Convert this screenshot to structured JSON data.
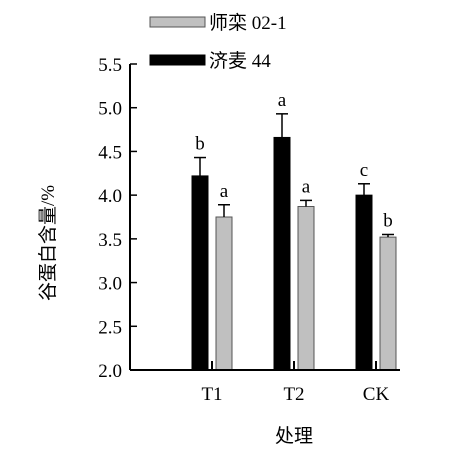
{
  "chart_data": {
    "type": "bar",
    "categories": [
      "T1",
      "T2",
      "CK"
    ],
    "series": [
      {
        "name": "济麦 44",
        "color": "#000000",
        "values": [
          4.22,
          4.66,
          4.0
        ],
        "errors": [
          0.21,
          0.27,
          0.13
        ],
        "letters": [
          "b",
          "a",
          "c"
        ]
      },
      {
        "name": "师栾 02-1",
        "color": "#c0c0c0",
        "values": [
          3.75,
          3.87,
          3.52
        ],
        "errors": [
          0.14,
          0.07,
          0.03
        ],
        "letters": [
          "a",
          "a",
          "b"
        ]
      }
    ],
    "legend_order": [
      1,
      0
    ],
    "legend_position": "top-left",
    "xlabel": "处理",
    "ylabel": "谷蛋白含量/%",
    "ylim": [
      2.0,
      5.5
    ],
    "yticks": [
      "2.0",
      "2.5",
      "3.0",
      "3.5",
      "4.0",
      "4.5",
      "5.0",
      "5.5"
    ],
    "grid": false
  }
}
